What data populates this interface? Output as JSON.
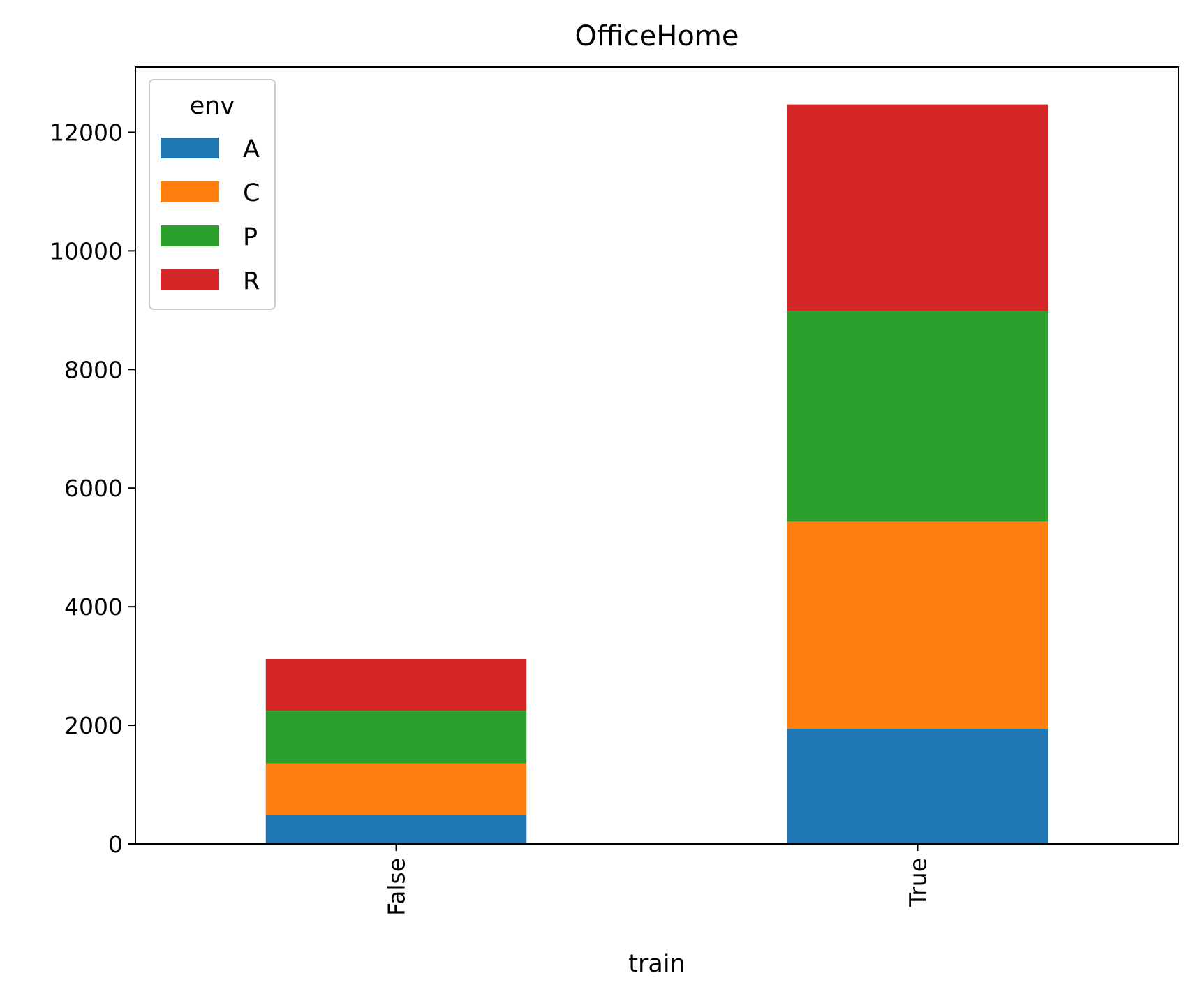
{
  "chart_data": {
    "type": "bar",
    "stacked": true,
    "title": "OfficeHome",
    "xlabel": "train",
    "ylabel": "",
    "categories": [
      "False",
      "True"
    ],
    "category_label_rotation": "vertical",
    "ylim": [
      0,
      13100
    ],
    "yticks": [
      0,
      2000,
      4000,
      6000,
      8000,
      10000,
      12000
    ],
    "grid": false,
    "legend": {
      "title": "env",
      "position": "top-left"
    },
    "series": [
      {
        "name": "A",
        "color": "#1f77b4",
        "values": [
          486,
          1941
        ]
      },
      {
        "name": "C",
        "color": "#ff7f0e",
        "values": [
          873,
          3492
        ]
      },
      {
        "name": "P",
        "color": "#2ca02c",
        "values": [
          888,
          3551
        ]
      },
      {
        "name": "R",
        "color": "#d62728",
        "values": [
          872,
          3485
        ]
      }
    ]
  }
}
